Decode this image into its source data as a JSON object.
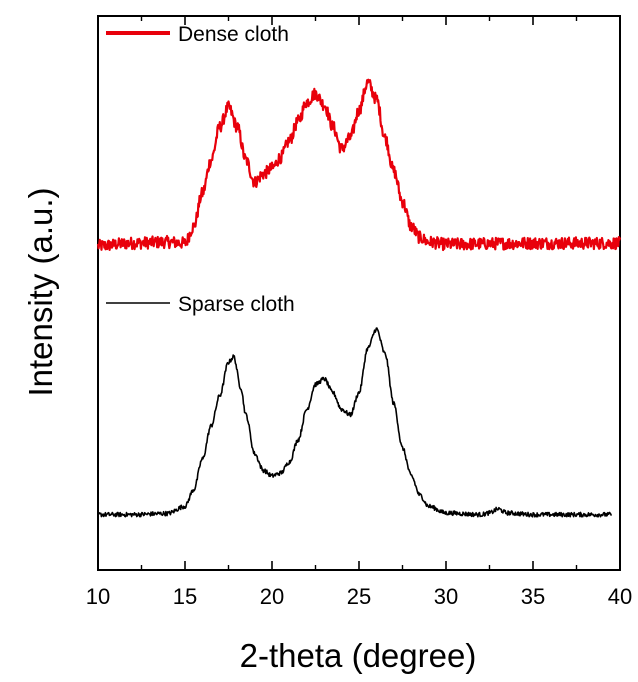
{
  "chart_data": {
    "type": "line",
    "title": "",
    "xlabel": "2-theta (degree)",
    "ylabel": "Intensity (a.u.)",
    "xlim": [
      10,
      40
    ],
    "ylim": [
      0,
      1
    ],
    "x_ticks": [
      "10",
      "15",
      "20",
      "25",
      "30",
      "35",
      "40"
    ],
    "y_ticks": [],
    "grid": false,
    "legend_position": "per-series labels (top-left of each curve)",
    "series": [
      {
        "name": "Dense cloth",
        "color": "#e8000b",
        "noise": 0.011,
        "points": [
          [
            10.0,
            0.585
          ],
          [
            12.0,
            0.59
          ],
          [
            14.0,
            0.592
          ],
          [
            15.0,
            0.59
          ],
          [
            15.5,
            0.62
          ],
          [
            16.0,
            0.68
          ],
          [
            16.5,
            0.74
          ],
          [
            17.0,
            0.8
          ],
          [
            17.5,
            0.835
          ],
          [
            18.0,
            0.8
          ],
          [
            18.5,
            0.74
          ],
          [
            19.0,
            0.7
          ],
          [
            19.5,
            0.715
          ],
          [
            20.0,
            0.725
          ],
          [
            20.5,
            0.745
          ],
          [
            21.0,
            0.775
          ],
          [
            21.5,
            0.81
          ],
          [
            22.0,
            0.845
          ],
          [
            22.5,
            0.86
          ],
          [
            23.0,
            0.84
          ],
          [
            23.5,
            0.8
          ],
          [
            24.0,
            0.76
          ],
          [
            24.5,
            0.78
          ],
          [
            25.0,
            0.83
          ],
          [
            25.5,
            0.88
          ],
          [
            26.0,
            0.85
          ],
          [
            26.5,
            0.78
          ],
          [
            27.0,
            0.72
          ],
          [
            27.5,
            0.665
          ],
          [
            28.0,
            0.62
          ],
          [
            28.5,
            0.6
          ],
          [
            29.0,
            0.592
          ],
          [
            30.0,
            0.588
          ],
          [
            35.0,
            0.59
          ],
          [
            40.0,
            0.59
          ]
        ]
      },
      {
        "name": "Sparse cloth",
        "color": "#000000",
        "noise": 0.004,
        "points": [
          [
            10.0,
            0.1
          ],
          [
            12.0,
            0.1
          ],
          [
            14.0,
            0.102
          ],
          [
            15.0,
            0.115
          ],
          [
            15.5,
            0.145
          ],
          [
            16.0,
            0.2
          ],
          [
            16.5,
            0.26
          ],
          [
            17.0,
            0.315
          ],
          [
            17.5,
            0.375
          ],
          [
            17.8,
            0.385
          ],
          [
            18.2,
            0.33
          ],
          [
            18.5,
            0.28
          ],
          [
            19.0,
            0.21
          ],
          [
            19.5,
            0.18
          ],
          [
            20.0,
            0.17
          ],
          [
            20.5,
            0.175
          ],
          [
            21.0,
            0.195
          ],
          [
            21.5,
            0.235
          ],
          [
            22.0,
            0.29
          ],
          [
            22.5,
            0.335
          ],
          [
            23.0,
            0.345
          ],
          [
            23.5,
            0.32
          ],
          [
            24.0,
            0.29
          ],
          [
            24.5,
            0.28
          ],
          [
            25.0,
            0.32
          ],
          [
            25.5,
            0.4
          ],
          [
            26.0,
            0.435
          ],
          [
            26.5,
            0.39
          ],
          [
            27.0,
            0.3
          ],
          [
            27.5,
            0.22
          ],
          [
            28.0,
            0.17
          ],
          [
            28.5,
            0.135
          ],
          [
            29.0,
            0.115
          ],
          [
            30.0,
            0.103
          ],
          [
            32.0,
            0.1
          ],
          [
            32.5,
            0.103
          ],
          [
            33.0,
            0.11
          ],
          [
            33.5,
            0.103
          ],
          [
            35.0,
            0.1
          ],
          [
            39.5,
            0.1
          ]
        ]
      }
    ]
  }
}
